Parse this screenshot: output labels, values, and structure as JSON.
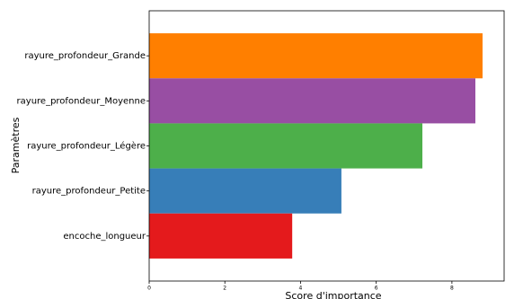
{
  "chart_data": {
    "type": "bar",
    "orientation": "horizontal",
    "x_label": "Score d'importance",
    "y_label": "Paramètres",
    "categories": [
      "rayure_profondeur_Grande",
      "rayure_profondeur_Moyenne",
      "rayure_profondeur_Légère",
      "rayure_profondeur_Petite",
      "encoche_longueur"
    ],
    "values": [
      8.81,
      8.62,
      7.22,
      5.08,
      3.78
    ],
    "colors": [
      "#ff7f00",
      "#984ea3",
      "#4daf4a",
      "#377eb8",
      "#e41a1c"
    ],
    "xlim": [
      0,
      9.38
    ],
    "xticks": [
      0,
      2,
      4,
      6,
      8
    ],
    "grid": false
  }
}
